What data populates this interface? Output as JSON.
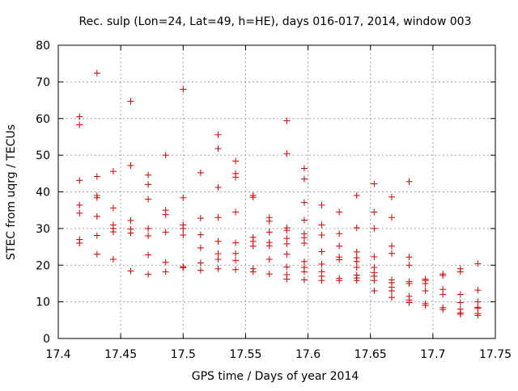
{
  "chart_data": {
    "type": "scatter",
    "title": "Rec. sulp (Lon=24, Lat=49, h=HE), days 016-017, 2014, window 003",
    "xlabel": "GPS time / Days of year 2014",
    "ylabel": "STEC from uqrg / TECUs",
    "xlim": [
      17.4,
      17.75
    ],
    "ylim": [
      0,
      80
    ],
    "xticks": [
      17.4,
      17.45,
      17.5,
      17.55,
      17.6,
      17.65,
      17.7,
      17.75
    ],
    "xtick_labels": [
      "17.4",
      "17.45",
      "17.5",
      "17.55",
      "17.6",
      "17.65",
      "17.7",
      "17.75"
    ],
    "yticks": [
      0,
      10,
      20,
      30,
      40,
      50,
      60,
      70,
      80
    ],
    "ytick_labels": [
      "0",
      "10",
      "20",
      "30",
      "40",
      "50",
      "60",
      "70",
      "80"
    ],
    "grid": true,
    "marker": "+",
    "color": "#cc0000",
    "points": [
      [
        17.417,
        60.5
      ],
      [
        17.417,
        58.3
      ],
      [
        17.417,
        43.1
      ],
      [
        17.417,
        36.4
      ],
      [
        17.417,
        34.2
      ],
      [
        17.417,
        27.0
      ],
      [
        17.417,
        26.0
      ],
      [
        17.431,
        72.4
      ],
      [
        17.431,
        44.2
      ],
      [
        17.431,
        39.0
      ],
      [
        17.431,
        38.4
      ],
      [
        17.431,
        33.3
      ],
      [
        17.431,
        28.1
      ],
      [
        17.431,
        23.0
      ],
      [
        17.444,
        45.6
      ],
      [
        17.444,
        35.6
      ],
      [
        17.444,
        31.0
      ],
      [
        17.444,
        30.0
      ],
      [
        17.444,
        29.1
      ],
      [
        17.444,
        21.6
      ],
      [
        17.458,
        64.7
      ],
      [
        17.458,
        47.2
      ],
      [
        17.458,
        32.2
      ],
      [
        17.458,
        29.8
      ],
      [
        17.458,
        28.8
      ],
      [
        17.458,
        18.4
      ],
      [
        17.472,
        44.6
      ],
      [
        17.472,
        42.0
      ],
      [
        17.472,
        38.0
      ],
      [
        17.472,
        30.0
      ],
      [
        17.472,
        28.0
      ],
      [
        17.472,
        22.8
      ],
      [
        17.472,
        17.5
      ],
      [
        17.486,
        50.0
      ],
      [
        17.486,
        35.0
      ],
      [
        17.486,
        33.8
      ],
      [
        17.486,
        29.0
      ],
      [
        17.486,
        20.8
      ],
      [
        17.486,
        18.2
      ],
      [
        17.5,
        68.0
      ],
      [
        17.5,
        38.4
      ],
      [
        17.5,
        31.0
      ],
      [
        17.5,
        30.0
      ],
      [
        17.5,
        28.2
      ],
      [
        17.5,
        19.6
      ],
      [
        17.5,
        19.3
      ],
      [
        17.514,
        45.2
      ],
      [
        17.514,
        32.8
      ],
      [
        17.514,
        28.3
      ],
      [
        17.514,
        24.7
      ],
      [
        17.514,
        20.6
      ],
      [
        17.514,
        18.6
      ],
      [
        17.528,
        55.6
      ],
      [
        17.528,
        51.8
      ],
      [
        17.528,
        41.2
      ],
      [
        17.528,
        33.0
      ],
      [
        17.528,
        26.5
      ],
      [
        17.528,
        23.1
      ],
      [
        17.528,
        21.6
      ],
      [
        17.528,
        19.0
      ],
      [
        17.542,
        48.4
      ],
      [
        17.542,
        45.0
      ],
      [
        17.542,
        44.0
      ],
      [
        17.542,
        34.5
      ],
      [
        17.542,
        26.1
      ],
      [
        17.542,
        23.2
      ],
      [
        17.542,
        21.3
      ],
      [
        17.542,
        18.8
      ],
      [
        17.556,
        39.0
      ],
      [
        17.556,
        38.5
      ],
      [
        17.556,
        27.6
      ],
      [
        17.556,
        26.5
      ],
      [
        17.556,
        25.2
      ],
      [
        17.556,
        19.0
      ],
      [
        17.556,
        18.2
      ],
      [
        17.569,
        33.0
      ],
      [
        17.569,
        32.0
      ],
      [
        17.569,
        29.0
      ],
      [
        17.569,
        26.2
      ],
      [
        17.569,
        25.3
      ],
      [
        17.569,
        21.6
      ],
      [
        17.569,
        17.6
      ],
      [
        17.583,
        59.4
      ],
      [
        17.583,
        50.4
      ],
      [
        17.583,
        30.2
      ],
      [
        17.583,
        29.5
      ],
      [
        17.583,
        27.3
      ],
      [
        17.583,
        25.8
      ],
      [
        17.583,
        23.0
      ],
      [
        17.583,
        19.5
      ],
      [
        17.583,
        17.4
      ],
      [
        17.583,
        16.2
      ],
      [
        17.597,
        46.4
      ],
      [
        17.597,
        43.5
      ],
      [
        17.597,
        37.1
      ],
      [
        17.597,
        32.3
      ],
      [
        17.597,
        28.6
      ],
      [
        17.597,
        27.5
      ],
      [
        17.597,
        26.0
      ],
      [
        17.597,
        21.0
      ],
      [
        17.597,
        19.4
      ],
      [
        17.597,
        18.2
      ],
      [
        17.597,
        16.0
      ],
      [
        17.611,
        36.4
      ],
      [
        17.611,
        31.0
      ],
      [
        17.611,
        28.2
      ],
      [
        17.611,
        23.7
      ],
      [
        17.611,
        20.3
      ],
      [
        17.611,
        18.2
      ],
      [
        17.611,
        17.0
      ],
      [
        17.611,
        15.8
      ],
      [
        17.625,
        34.5
      ],
      [
        17.625,
        28.6
      ],
      [
        17.625,
        25.2
      ],
      [
        17.625,
        22.2
      ],
      [
        17.625,
        21.5
      ],
      [
        17.625,
        16.4
      ],
      [
        17.625,
        15.8
      ],
      [
        17.639,
        39.0
      ],
      [
        17.639,
        30.2
      ],
      [
        17.639,
        23.6
      ],
      [
        17.639,
        22.0
      ],
      [
        17.639,
        21.0
      ],
      [
        17.639,
        19.4
      ],
      [
        17.639,
        17.3
      ],
      [
        17.639,
        16.5
      ],
      [
        17.639,
        15.8
      ],
      [
        17.653,
        42.2
      ],
      [
        17.653,
        34.5
      ],
      [
        17.653,
        30.0
      ],
      [
        17.653,
        22.3
      ],
      [
        17.653,
        19.4
      ],
      [
        17.653,
        18.0
      ],
      [
        17.653,
        17.0
      ],
      [
        17.653,
        15.8
      ],
      [
        17.653,
        13.0
      ],
      [
        17.667,
        38.6
      ],
      [
        17.667,
        33.0
      ],
      [
        17.667,
        25.2
      ],
      [
        17.667,
        23.2
      ],
      [
        17.667,
        16.0
      ],
      [
        17.667,
        15.2
      ],
      [
        17.667,
        14.0
      ],
      [
        17.667,
        13.0
      ],
      [
        17.667,
        11.2
      ],
      [
        17.681,
        42.8
      ],
      [
        17.681,
        22.2
      ],
      [
        17.681,
        20.0
      ],
      [
        17.681,
        15.5
      ],
      [
        17.681,
        15.0
      ],
      [
        17.681,
        11.5
      ],
      [
        17.681,
        10.5
      ],
      [
        17.681,
        9.8
      ],
      [
        17.694,
        16.2
      ],
      [
        17.694,
        15.8
      ],
      [
        17.694,
        15.0
      ],
      [
        17.694,
        13.0
      ],
      [
        17.694,
        9.5
      ],
      [
        17.694,
        9.0
      ],
      [
        17.708,
        17.6
      ],
      [
        17.708,
        17.2
      ],
      [
        17.708,
        13.4
      ],
      [
        17.708,
        12.0
      ],
      [
        17.708,
        8.4
      ],
      [
        17.708,
        7.9
      ],
      [
        17.722,
        19.0
      ],
      [
        17.722,
        18.2
      ],
      [
        17.722,
        12.0
      ],
      [
        17.722,
        9.8
      ],
      [
        17.722,
        8.0
      ],
      [
        17.722,
        7.0
      ],
      [
        17.722,
        6.6
      ],
      [
        17.736,
        20.4
      ],
      [
        17.736,
        13.2
      ],
      [
        17.736,
        10.0
      ],
      [
        17.736,
        8.5
      ],
      [
        17.736,
        8.2
      ],
      [
        17.736,
        6.8
      ],
      [
        17.736,
        6.3
      ]
    ]
  }
}
